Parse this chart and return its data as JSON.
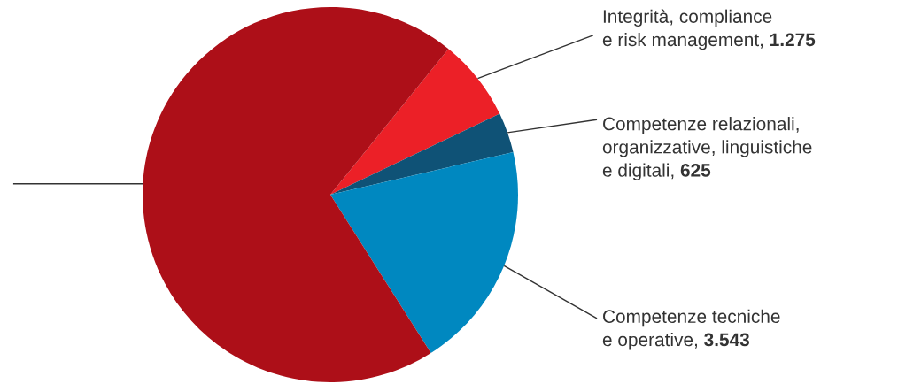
{
  "chart_data": {
    "type": "pie",
    "categories": [
      "Integrità, compliance\ne risk management",
      "Competenze relazionali,\norganizzative, linguistiche\ne digitali",
      "Competenze tecniche\ne operative",
      null
    ],
    "values": [
      1275,
      625,
      3543,
      12600
    ],
    "colors": [
      "#ec2027",
      "#0f5276",
      "#0088c0",
      "#ad0f18"
    ],
    "value_labels": [
      "1.275",
      "625",
      "3.543",
      null
    ]
  }
}
